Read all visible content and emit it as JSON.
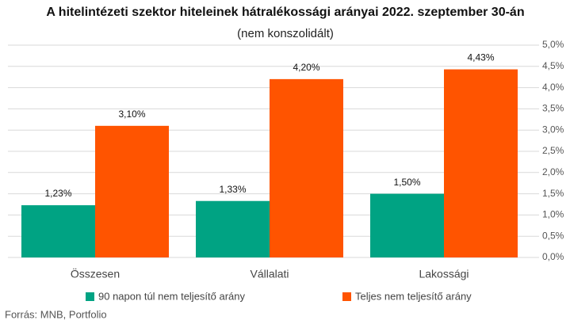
{
  "chart_data": {
    "type": "bar",
    "title": "A hitelintézeti szektor hiteleinek hátralékossági arányai 2022. szeptember 30-án",
    "subtitle": "(nem konszolidált)",
    "categories": [
      "Összesen",
      "Vállalati",
      "Lakossági"
    ],
    "series": [
      {
        "name": "90 napon túl nem teljesítő arány",
        "color": "#00a383",
        "values": [
          1.23,
          1.33,
          1.5
        ],
        "value_labels": [
          "1,23%",
          "1,33%",
          "1,50%"
        ]
      },
      {
        "name": "Teljes nem teljesítő arány",
        "color": "#ff5400",
        "values": [
          3.1,
          4.2,
          4.43
        ],
        "value_labels": [
          "3,10%",
          "4,20%",
          "4,43%"
        ]
      }
    ],
    "ylim": [
      0,
      5
    ],
    "yticks": [
      {
        "value": 0,
        "label": "0,0%"
      },
      {
        "value": 0.5,
        "label": "0,5%"
      },
      {
        "value": 1,
        "label": "1,0%"
      },
      {
        "value": 1.5,
        "label": "1,5%"
      },
      {
        "value": 2,
        "label": "2,0%"
      },
      {
        "value": 2.5,
        "label": "2,5%"
      },
      {
        "value": 3,
        "label": "3,0%"
      },
      {
        "value": 3.5,
        "label": "3,5%"
      },
      {
        "value": 4,
        "label": "4,0%"
      },
      {
        "value": 4.5,
        "label": "4,5%"
      },
      {
        "value": 5,
        "label": "5,0%"
      }
    ],
    "grid": true,
    "legend": "bottom",
    "source": "Forrás: MNB, Portfolio"
  }
}
